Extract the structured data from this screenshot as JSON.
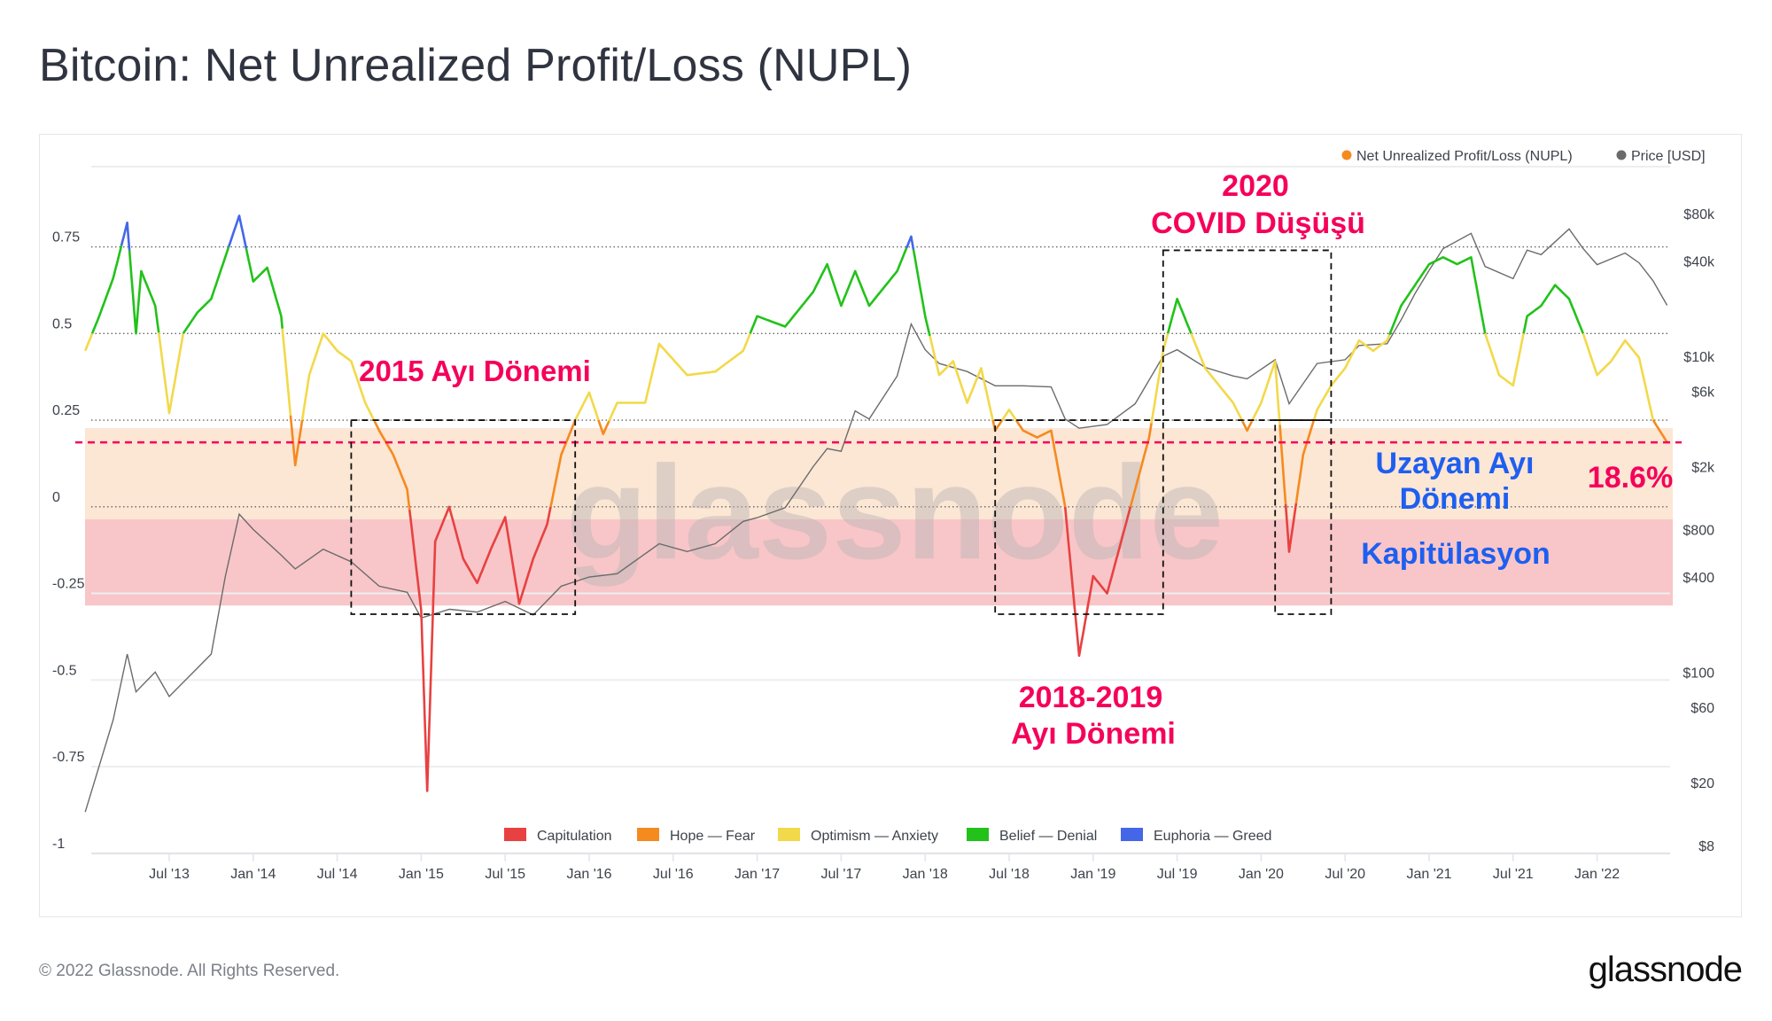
{
  "title": "Bitcoin: Net Unrealized Profit/Loss (NUPL)",
  "footer": {
    "copyright": "© 2022 Glassnode. All Rights Reserved.",
    "logo": "glassnode"
  },
  "watermark": "glassnode",
  "colors": {
    "capitulation": "#e84141",
    "hope_fear": "#f58a1f",
    "optimism_anxiety": "#f2d94a",
    "belief_denial": "#22c21a",
    "euphoria_greed": "#4467e8",
    "price": "#6b6b6b",
    "annotation_pink": "#f5005a",
    "annotation_blue": "#1d5ff0",
    "band_orange": "#fce6d4",
    "band_red": "#f8c6c8"
  },
  "annotations": {
    "bear_2015": "2015 Ayı Dönemi",
    "covid_year": "2020",
    "covid_label": "COVID Düşüşü",
    "bear_2018_years": "2018-2019",
    "bear_2018_label": "Ayı Dönemi",
    "extended_bear_1": "Uzayan Ayı",
    "extended_bear_2": "Dönemi",
    "current_value": "18.6%",
    "capitulation": "Kapitülasyon"
  },
  "chart_data": {
    "type": "line",
    "title": "Bitcoin: Net Unrealized Profit/Loss (NUPL)",
    "legend_top": [
      {
        "label": "Net Unrealized Profit/Loss (NUPL)",
        "color": "#f58a1f"
      },
      {
        "label": "Price [USD]",
        "color": "#6b6b6b"
      }
    ],
    "legend_top_placement": "top-right",
    "legend_bottom": [
      {
        "label": "Capitulation",
        "color": "#e84141",
        "range": [
          -1,
          0
        ]
      },
      {
        "label": "Hope — Fear",
        "color": "#f58a1f",
        "range": [
          0,
          0.25
        ]
      },
      {
        "label": "Optimism — Anxiety",
        "color": "#f2d94a",
        "range": [
          0.25,
          0.5
        ]
      },
      {
        "label": "Belief — Denial",
        "color": "#22c21a",
        "range": [
          0.5,
          0.75
        ]
      },
      {
        "label": "Euphoria — Greed",
        "color": "#4467e8",
        "range": [
          0.75,
          1
        ]
      }
    ],
    "legend_bottom_placement": "bottom-center",
    "x_ticks": [
      "Jul '13",
      "Jan '14",
      "Jul '14",
      "Jan '15",
      "Jul '15",
      "Jan '16",
      "Jul '16",
      "Jan '17",
      "Jul '17",
      "Jan '18",
      "Jul '18",
      "Jan '19",
      "Jul '19",
      "Jan '20",
      "Jul '20",
      "Jan '21",
      "Jul '21",
      "Jan '22"
    ],
    "y_left": {
      "ticks": [
        "0.75",
        "0.5",
        "0.25",
        "0",
        "-0.25",
        "-0.5",
        "-0.75",
        "-1"
      ],
      "values": [
        0.75,
        0.5,
        0.25,
        0,
        -0.25,
        -0.5,
        -0.75,
        -1
      ],
      "range": [
        -1,
        0.9
      ]
    },
    "y_right": {
      "scale": "log",
      "ticks": [
        "$80k",
        "$40k",
        "$10k",
        "$6k",
        "$2k",
        "$800",
        "$400",
        "$100",
        "$60",
        "$20",
        "$8"
      ],
      "values": [
        80000,
        40000,
        10000,
        6000,
        2000,
        800,
        400,
        100,
        60,
        20,
        8
      ]
    },
    "grid": true,
    "reference_line": {
      "value": 0.186,
      "label": "18.6%",
      "style": "dashed",
      "color": "#f5005a"
    },
    "zones_highlighted": [
      {
        "from": -0.036,
        "to": 0.227,
        "color": "#fce6d4"
      },
      {
        "from": -0.285,
        "to": -0.036,
        "color": "#f8c6c8"
      }
    ],
    "boxes": [
      {
        "label": "2015 Ayı Dönemi",
        "from": "2014-08",
        "to": "2015-12",
        "nupl_range": [
          -0.31,
          0.25
        ]
      },
      {
        "label": "2018-2019 Ayı Dönemi",
        "from": "2018-06",
        "to": "2019-06",
        "nupl_range": [
          -0.31,
          0.25
        ]
      },
      {
        "label": "2020 COVID Düşüşü",
        "from": "2020-02",
        "to": "2020-06",
        "nupl_range": [
          -0.31,
          0.25
        ]
      },
      {
        "label": "2020 COVID Düşüşü",
        "from": "2019-06",
        "to": "2020-06",
        "nupl_range": [
          0.25,
          0.74
        ]
      }
    ],
    "series": [
      {
        "name": "Net Unrealized Profit/Loss (NUPL)",
        "axis": "left",
        "points": [
          [
            "2013-01",
            0.45
          ],
          [
            "2013-02",
            0.55
          ],
          [
            "2013-03",
            0.66
          ],
          [
            "2013-04",
            0.82
          ],
          [
            "2013-04-20",
            0.5
          ],
          [
            "2013-05",
            0.68
          ],
          [
            "2013-06",
            0.58
          ],
          [
            "2013-07",
            0.27
          ],
          [
            "2013-08",
            0.5
          ],
          [
            "2013-09",
            0.56
          ],
          [
            "2013-10",
            0.6
          ],
          [
            "2013-11",
            0.72
          ],
          [
            "2013-12",
            0.84
          ],
          [
            "2014-01",
            0.65
          ],
          [
            "2014-02",
            0.69
          ],
          [
            "2014-03",
            0.55
          ],
          [
            "2014-04",
            0.12
          ],
          [
            "2014-05",
            0.38
          ],
          [
            "2014-06",
            0.5
          ],
          [
            "2014-07",
            0.45
          ],
          [
            "2014-08",
            0.42
          ],
          [
            "2014-09",
            0.3
          ],
          [
            "2014-10",
            0.22
          ],
          [
            "2014-11",
            0.15
          ],
          [
            "2014-12",
            0.05
          ],
          [
            "2015-01",
            -0.3
          ],
          [
            "2015-01-14",
            -0.82
          ],
          [
            "2015-02",
            -0.1
          ],
          [
            "2015-03",
            0.0
          ],
          [
            "2015-04",
            -0.15
          ],
          [
            "2015-05",
            -0.22
          ],
          [
            "2015-06",
            -0.12
          ],
          [
            "2015-07",
            -0.03
          ],
          [
            "2015-08",
            -0.28
          ],
          [
            "2015-09",
            -0.15
          ],
          [
            "2015-10",
            -0.05
          ],
          [
            "2015-11",
            0.15
          ],
          [
            "2015-12",
            0.25
          ],
          [
            "2016-01",
            0.33
          ],
          [
            "2016-02",
            0.21
          ],
          [
            "2016-03",
            0.3
          ],
          [
            "2016-05",
            0.3
          ],
          [
            "2016-06",
            0.47
          ],
          [
            "2016-08",
            0.38
          ],
          [
            "2016-10",
            0.39
          ],
          [
            "2016-12",
            0.45
          ],
          [
            "2017-01",
            0.55
          ],
          [
            "2017-03",
            0.52
          ],
          [
            "2017-05",
            0.62
          ],
          [
            "2017-06",
            0.7
          ],
          [
            "2017-07",
            0.58
          ],
          [
            "2017-08",
            0.68
          ],
          [
            "2017-09",
            0.58
          ],
          [
            "2017-11",
            0.68
          ],
          [
            "2017-12",
            0.78
          ],
          [
            "2018-01",
            0.55
          ],
          [
            "2018-02",
            0.38
          ],
          [
            "2018-03",
            0.42
          ],
          [
            "2018-04",
            0.3
          ],
          [
            "2018-05",
            0.4
          ],
          [
            "2018-06",
            0.22
          ],
          [
            "2018-07",
            0.28
          ],
          [
            "2018-08",
            0.22
          ],
          [
            "2018-09",
            0.2
          ],
          [
            "2018-10",
            0.22
          ],
          [
            "2018-11",
            0.0
          ],
          [
            "2018-12",
            -0.43
          ],
          [
            "2019-01",
            -0.2
          ],
          [
            "2019-02",
            -0.25
          ],
          [
            "2019-03",
            -0.1
          ],
          [
            "2019-04",
            0.05
          ],
          [
            "2019-05",
            0.2
          ],
          [
            "2019-06",
            0.45
          ],
          [
            "2019-07",
            0.6
          ],
          [
            "2019-08",
            0.5
          ],
          [
            "2019-09",
            0.4
          ],
          [
            "2019-10",
            0.35
          ],
          [
            "2019-11",
            0.3
          ],
          [
            "2019-12",
            0.22
          ],
          [
            "2020-01",
            0.3
          ],
          [
            "2020-02",
            0.42
          ],
          [
            "2020-03",
            -0.13
          ],
          [
            "2020-04",
            0.15
          ],
          [
            "2020-05",
            0.28
          ],
          [
            "2020-06",
            0.35
          ],
          [
            "2020-07",
            0.4
          ],
          [
            "2020-08",
            0.48
          ],
          [
            "2020-09",
            0.45
          ],
          [
            "2020-10",
            0.48
          ],
          [
            "2020-11",
            0.58
          ],
          [
            "2020-12",
            0.64
          ],
          [
            "2021-01",
            0.7
          ],
          [
            "2021-02",
            0.72
          ],
          [
            "2021-03",
            0.7
          ],
          [
            "2021-04",
            0.72
          ],
          [
            "2021-05",
            0.5
          ],
          [
            "2021-06",
            0.38
          ],
          [
            "2021-07",
            0.35
          ],
          [
            "2021-08",
            0.55
          ],
          [
            "2021-09",
            0.58
          ],
          [
            "2021-10",
            0.64
          ],
          [
            "2021-11",
            0.6
          ],
          [
            "2021-12",
            0.5
          ],
          [
            "2022-01",
            0.38
          ],
          [
            "2022-02",
            0.42
          ],
          [
            "2022-03",
            0.48
          ],
          [
            "2022-04",
            0.43
          ],
          [
            "2022-05",
            0.25
          ],
          [
            "2022-06",
            0.186
          ]
        ]
      },
      {
        "name": "Price [USD]",
        "axis": "right",
        "points": [
          [
            "2013-01",
            13
          ],
          [
            "2013-03",
            50
          ],
          [
            "2013-04",
            130
          ],
          [
            "2013-04-20",
            75
          ],
          [
            "2013-06",
            100
          ],
          [
            "2013-07",
            70
          ],
          [
            "2013-10",
            130
          ],
          [
            "2013-11",
            400
          ],
          [
            "2013-12",
            1000
          ],
          [
            "2014-01",
            800
          ],
          [
            "2014-03",
            550
          ],
          [
            "2014-04",
            450
          ],
          [
            "2014-06",
            600
          ],
          [
            "2014-08",
            500
          ],
          [
            "2014-10",
            350
          ],
          [
            "2014-12",
            320
          ],
          [
            "2015-01",
            220
          ],
          [
            "2015-03",
            250
          ],
          [
            "2015-05",
            240
          ],
          [
            "2015-07",
            280
          ],
          [
            "2015-09",
            230
          ],
          [
            "2015-11",
            350
          ],
          [
            "2016-01",
            400
          ],
          [
            "2016-03",
            420
          ],
          [
            "2016-06",
            650
          ],
          [
            "2016-08",
            580
          ],
          [
            "2016-10",
            650
          ],
          [
            "2016-12",
            900
          ],
          [
            "2017-01",
            950
          ],
          [
            "2017-03",
            1100
          ],
          [
            "2017-05",
            2000
          ],
          [
            "2017-06",
            2600
          ],
          [
            "2017-07",
            2500
          ],
          [
            "2017-08",
            4500
          ],
          [
            "2017-09",
            4000
          ],
          [
            "2017-11",
            7500
          ],
          [
            "2017-12",
            16000
          ],
          [
            "2018-01",
            11000
          ],
          [
            "2018-02",
            9000
          ],
          [
            "2018-04",
            8000
          ],
          [
            "2018-06",
            6500
          ],
          [
            "2018-08",
            6500
          ],
          [
            "2018-10",
            6400
          ],
          [
            "2018-11",
            4000
          ],
          [
            "2018-12",
            3500
          ],
          [
            "2019-02",
            3700
          ],
          [
            "2019-04",
            5000
          ],
          [
            "2019-06",
            10000
          ],
          [
            "2019-07",
            11000
          ],
          [
            "2019-09",
            8500
          ],
          [
            "2019-11",
            7500
          ],
          [
            "2019-12",
            7200
          ],
          [
            "2020-02",
            9500
          ],
          [
            "2020-03",
            5000
          ],
          [
            "2020-05",
            9000
          ],
          [
            "2020-07",
            9500
          ],
          [
            "2020-08",
            11700
          ],
          [
            "2020-10",
            12000
          ],
          [
            "2020-11",
            17000
          ],
          [
            "2020-12",
            25000
          ],
          [
            "2021-01",
            35000
          ],
          [
            "2021-02",
            48000
          ],
          [
            "2021-04",
            60000
          ],
          [
            "2021-05",
            37000
          ],
          [
            "2021-07",
            31000
          ],
          [
            "2021-08",
            47000
          ],
          [
            "2021-09",
            44000
          ],
          [
            "2021-11",
            64000
          ],
          [
            "2021-12",
            48000
          ],
          [
            "2022-01",
            38000
          ],
          [
            "2022-03",
            45000
          ],
          [
            "2022-04",
            39000
          ],
          [
            "2022-05",
            30000
          ],
          [
            "2022-06",
            21000
          ]
        ]
      }
    ]
  }
}
